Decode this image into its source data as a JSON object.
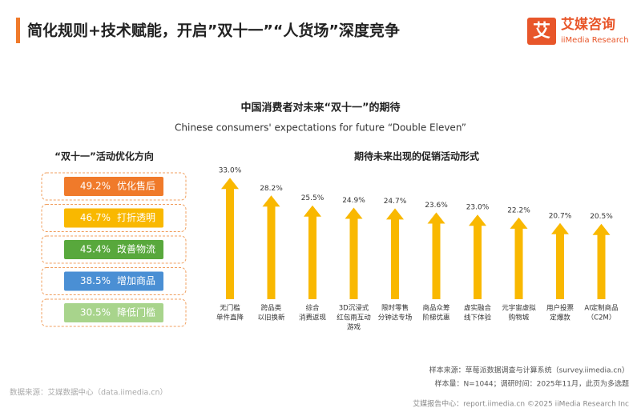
{
  "header": {
    "title": "简化规则+技术赋能，开启”双十一”“人货场”深度竞争",
    "logo_mark": "艾",
    "logo_name": "艾媒咨询",
    "logo_en": "iiMedia Research"
  },
  "main_title": "中国消费者对未来“双十一”的期待",
  "subtitle": "Chinese consumers' expectations for future “Double Eleven”",
  "chart_data": [
    {
      "type": "list",
      "title": "“双十一”活动优化方向",
      "categories": [
        "优化售后",
        "打折透明",
        "改善物流",
        "增加商品",
        "降低门槛"
      ],
      "values": [
        49.2,
        46.7,
        45.4,
        38.5,
        30.5
      ],
      "value_labels": [
        "49.2%",
        "46.7%",
        "45.4%",
        "38.5%",
        "30.5%"
      ],
      "colors": [
        "#f07a2a",
        "#f9b800",
        "#58a83c",
        "#4a8fd4",
        "#a8d48c"
      ]
    },
    {
      "type": "arrow-bar",
      "title": "期待未来出现的促销活动形式",
      "categories": [
        [
          "无门槛",
          "单件直降"
        ],
        [
          "跨品类",
          "以旧换新"
        ],
        [
          "综合",
          "消费返现"
        ],
        [
          "3D沉浸式",
          "红包雨互动",
          "游戏"
        ],
        [
          "限时零售",
          "分钟达专场"
        ],
        [
          "商品众筹",
          "阶梯优惠"
        ],
        [
          "虚实融合",
          "线下体验"
        ],
        [
          "元宇宙虚拟",
          "购物城"
        ],
        [
          "用户投票",
          "定爆款"
        ],
        [
          "AI定制商品",
          "（C2M）"
        ]
      ],
      "values": [
        33.0,
        28.2,
        25.5,
        24.9,
        24.7,
        23.6,
        23.0,
        22.2,
        20.7,
        20.5
      ],
      "value_labels": [
        "33.0%",
        "28.2%",
        "25.5%",
        "24.9%",
        "24.7%",
        "23.6%",
        "23.0%",
        "22.2%",
        "20.7%",
        "20.5%"
      ],
      "color": "#f9b800"
    }
  ],
  "footer": {
    "source": "数据来源：艾媒数据中心（data.iimedia.cn）",
    "sample_source": "样本来源：草莓派数据调查与计算系统（survey.iimedia.cn）",
    "sample_info": "样本量：N=1044；调研时间：2025年11月，此页为多选题",
    "report": "艾媒报告中心：report.iimedia.cn  ©2025  iiMedia Research  Inc"
  }
}
